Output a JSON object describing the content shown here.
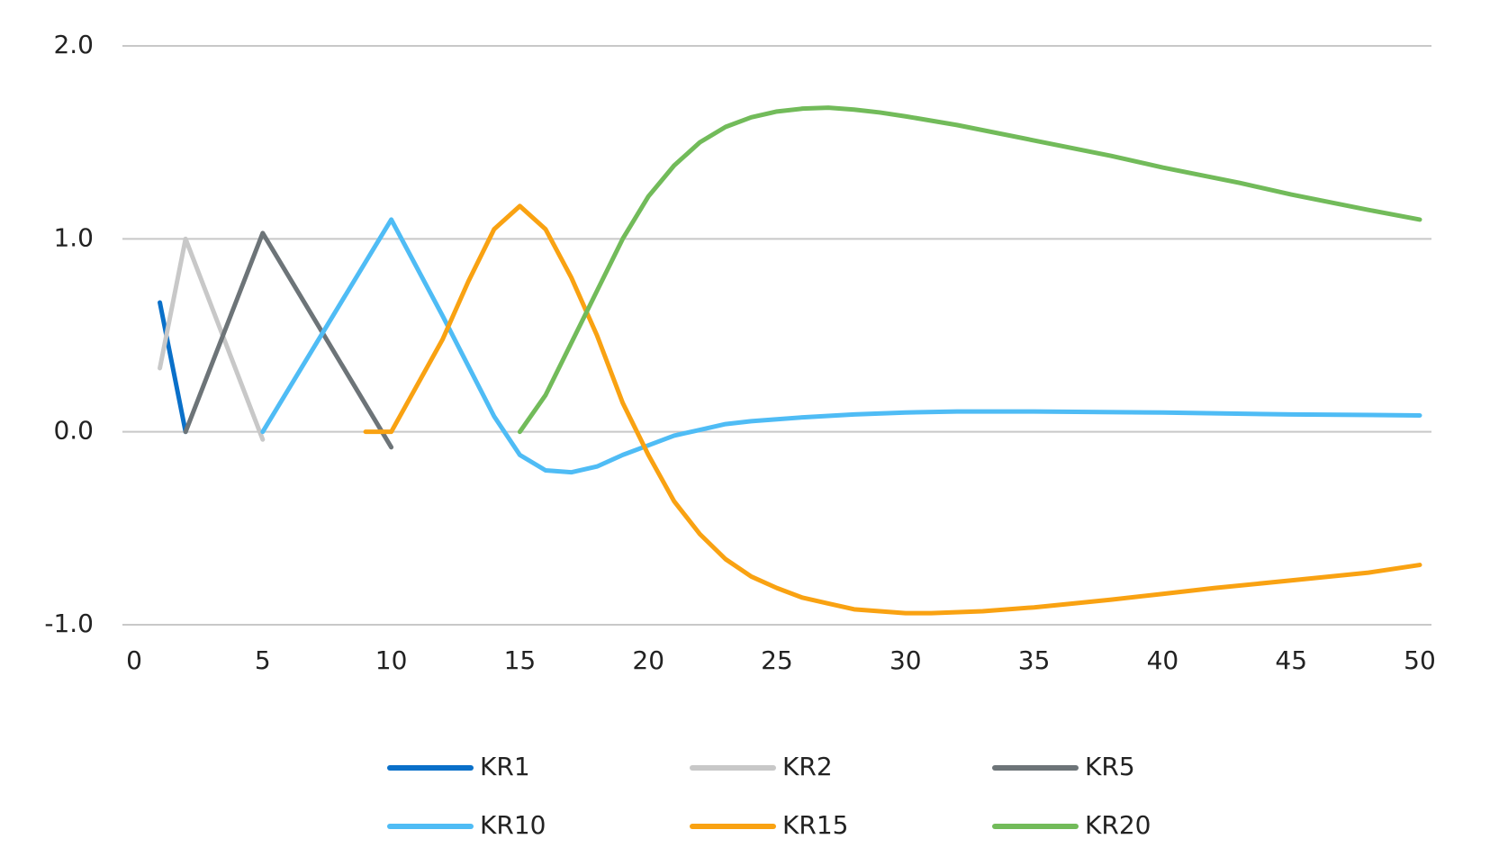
{
  "chart_data": {
    "type": "line",
    "xlim": [
      0,
      50
    ],
    "xticks": [
      0,
      5,
      10,
      15,
      20,
      25,
      30,
      35,
      40,
      45,
      50
    ],
    "ylim": [
      -1,
      2
    ],
    "yticks": [
      {
        "value": -1,
        "label": "-1.0"
      },
      {
        "value": 0,
        "label": "0.0"
      },
      {
        "value": 1,
        "label": "1.0"
      },
      {
        "value": 2,
        "label": "2.0"
      }
    ],
    "grid": true,
    "legend": "bottom",
    "series": [
      {
        "name": "KR1",
        "color": "#0a70c9",
        "x": [
          1,
          2
        ],
        "values": [
          0.67,
          0
        ]
      },
      {
        "name": "KR2",
        "color": "#c8c8c8",
        "x": [
          1,
          2,
          5
        ],
        "values": [
          0.33,
          1.0,
          -0.04
        ]
      },
      {
        "name": "KR5",
        "color": "#6d7478",
        "x": [
          2,
          5,
          10
        ],
        "values": [
          0,
          1.03,
          -0.08
        ]
      },
      {
        "name": "KR10",
        "color": "#4fbcf5",
        "x": [
          5,
          10,
          12,
          14,
          15,
          16,
          17,
          18,
          19,
          20,
          21,
          22,
          23,
          24,
          25,
          26,
          28,
          30,
          32,
          35,
          40,
          45,
          50
        ],
        "values": [
          0,
          1.1,
          0.6,
          0.08,
          -0.12,
          -0.2,
          -0.21,
          -0.18,
          -0.12,
          -0.07,
          -0.02,
          0.01,
          0.04,
          0.055,
          0.065,
          0.075,
          0.09,
          0.1,
          0.105,
          0.105,
          0.1,
          0.09,
          0.085
        ]
      },
      {
        "name": "KR15",
        "color": "#f9a212",
        "x": [
          9,
          10,
          12,
          13,
          14,
          15,
          16,
          17,
          18,
          19,
          20,
          21,
          22,
          23,
          24,
          25,
          26,
          27,
          28,
          29,
          30,
          31,
          33,
          35,
          38,
          40,
          42,
          45,
          48,
          50
        ],
        "values": [
          0,
          0,
          0.48,
          0.78,
          1.05,
          1.17,
          1.05,
          0.8,
          0.5,
          0.15,
          -0.12,
          -0.36,
          -0.53,
          -0.66,
          -0.75,
          -0.81,
          -0.86,
          -0.89,
          -0.92,
          -0.93,
          -0.94,
          -0.94,
          -0.93,
          -0.91,
          -0.87,
          -0.84,
          -0.81,
          -0.77,
          -0.73,
          -0.69
        ]
      },
      {
        "name": "KR20",
        "color": "#72bb5a",
        "x": [
          15,
          16,
          17,
          18,
          19,
          20,
          21,
          22,
          23,
          24,
          25,
          26,
          27,
          28,
          29,
          30,
          32,
          35,
          38,
          40,
          43,
          45,
          48,
          50
        ],
        "values": [
          0,
          0.19,
          0.46,
          0.73,
          1.0,
          1.22,
          1.38,
          1.5,
          1.58,
          1.63,
          1.66,
          1.675,
          1.68,
          1.67,
          1.655,
          1.635,
          1.59,
          1.51,
          1.43,
          1.37,
          1.29,
          1.23,
          1.15,
          1.1
        ]
      }
    ]
  }
}
